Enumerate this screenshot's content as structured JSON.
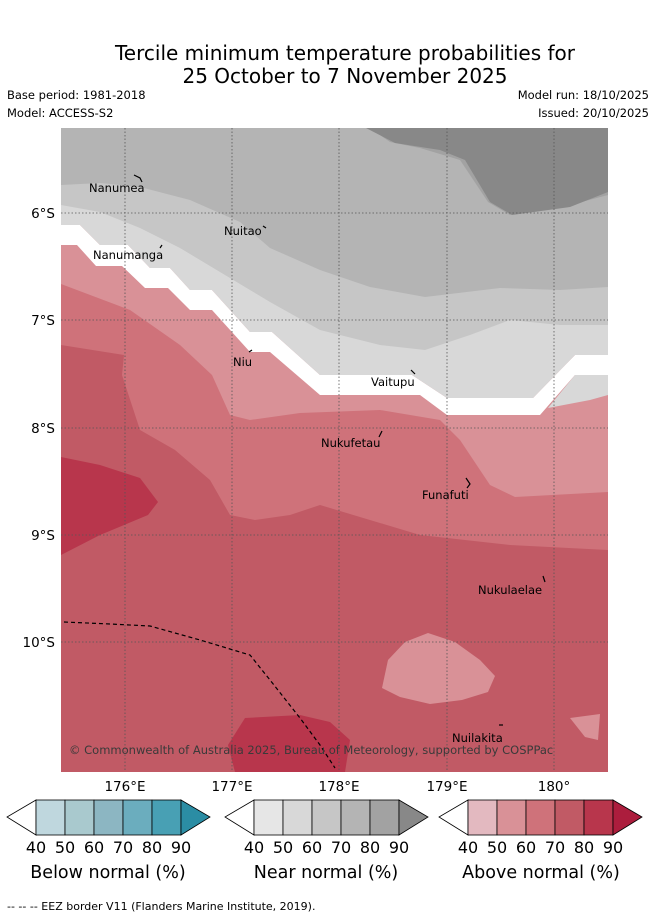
{
  "title": {
    "line1": "Tercile minimum temperature probabilities for",
    "line2": "25 October to 7 November 2025"
  },
  "meta": {
    "base_period": "Base period: 1981-2018",
    "model": "Model: ACCESS-S2",
    "model_run": "Model run: 18/10/2025",
    "issued": "Issued: 20/10/2025"
  },
  "map": {
    "lat_labels": [
      "6°S",
      "7°S",
      "8°S",
      "9°S",
      "10°S"
    ],
    "lon_labels": [
      "176°E",
      "177°E",
      "178°E",
      "179°E",
      "180°"
    ],
    "islands": [
      {
        "name": "Nanumea"
      },
      {
        "name": "Nuitao"
      },
      {
        "name": "Nanumanga"
      },
      {
        "name": "Niu"
      },
      {
        "name": "Vaitupu"
      },
      {
        "name": "Nukufetau"
      },
      {
        "name": "Funafuti"
      },
      {
        "name": "Nukulaelae"
      },
      {
        "name": "Nuilakita"
      }
    ],
    "copyright": "© Commonwealth of Australia 2025, Bureau of Meteorology, supported by COSPPac"
  },
  "colors": {
    "below": [
      "#bfd7de",
      "#a9c9ce",
      "#8cb6c2",
      "#6badbe",
      "#48a0b4",
      "#2b8da4"
    ],
    "near": [
      "#e6e6e6",
      "#d8d8d8",
      "#c6c6c6",
      "#b4b4b4",
      "#a2a2a2",
      "#888888"
    ],
    "above": [
      "#e3b9c0",
      "#d99197",
      "#cf727a",
      "#c15a65",
      "#b8364c",
      "#ac1d3d"
    ]
  },
  "colorbars": [
    {
      "label": "Below normal (%)",
      "ticks": [
        "40",
        "50",
        "60",
        "70",
        "80",
        "90"
      ]
    },
    {
      "label": "Near normal (%)",
      "ticks": [
        "40",
        "50",
        "60",
        "70",
        "80",
        "90"
      ]
    },
    {
      "label": "Above normal (%)",
      "ticks": [
        "40",
        "50",
        "60",
        "70",
        "80",
        "90"
      ]
    }
  ],
  "footer": "-- -- -- EEZ border V11 (Flanders Marine Institute, 2019)."
}
